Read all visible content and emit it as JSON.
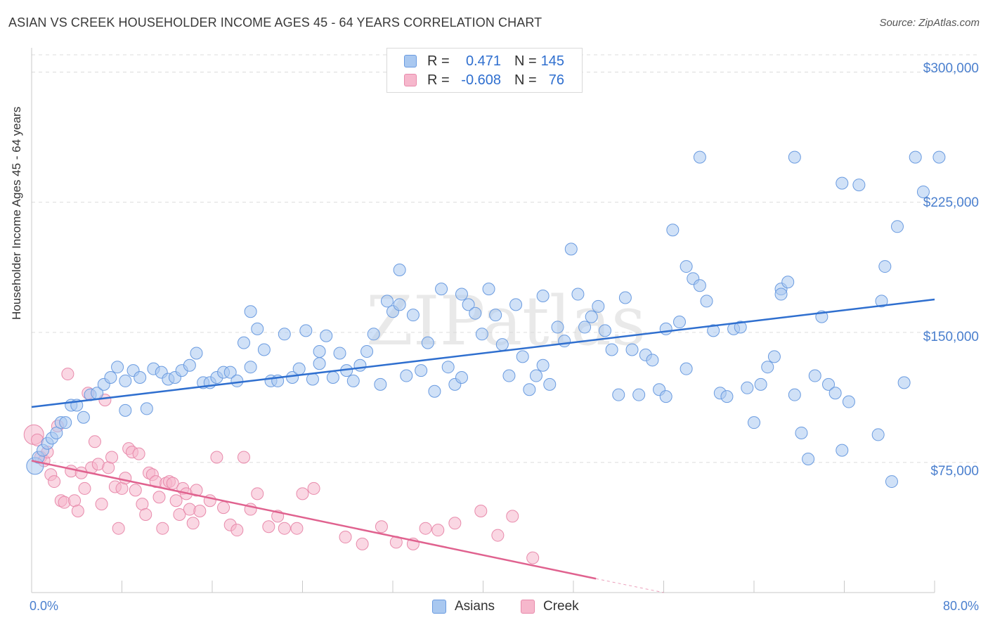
{
  "title": "ASIAN VS CREEK HOUSEHOLDER INCOME AGES 45 - 64 YEARS CORRELATION CHART",
  "source": "Source: ZipAtlas.com",
  "watermark": "ZIPatlas",
  "legend": {
    "rows": [
      {
        "r_label": "R =",
        "r_value": "0.471",
        "n_label": "N =",
        "n_value": "145"
      },
      {
        "r_label": "R =",
        "r_value": "-0.608",
        "n_label": "N =",
        "n_value": "76"
      }
    ]
  },
  "bottom_legend": {
    "asians": "Asians",
    "creek": "Creek"
  },
  "colors": {
    "asians_fill": "#a9c8f0",
    "asians_stroke": "#6a9be0",
    "asians_line": "#2f6fcf",
    "creek_fill": "#f6b7cc",
    "creek_stroke": "#e88aab",
    "creek_line": "#e0628f",
    "tick_text": "#4a7fce",
    "grid": "#dcdcdc"
  },
  "chart_data": {
    "type": "scatter",
    "title": "ASIAN VS CREEK HOUSEHOLDER INCOME AGES 45 - 64 YEARS CORRELATION CHART",
    "xlabel": "",
    "ylabel": "Householder Income Ages 45 - 64 years",
    "xlim": [
      0,
      80
    ],
    "ylim": [
      0,
      310000
    ],
    "x_tick_labels": [
      "0.0%",
      "80.0%"
    ],
    "y_ticks": [
      75000,
      150000,
      225000,
      300000
    ],
    "y_tick_labels": [
      "$75,000",
      "$150,000",
      "$225,000",
      "$300,000"
    ],
    "grid": true,
    "legend_position": "top-center",
    "series": [
      {
        "name": "Asians",
        "r": 0.471,
        "n": 145,
        "trend": {
          "x": [
            0,
            80
          ],
          "y": [
            107000,
            169000
          ]
        },
        "points": [
          [
            0.3,
            73000
          ],
          [
            0.6,
            78000
          ],
          [
            1.0,
            82000
          ],
          [
            1.4,
            86000
          ],
          [
            1.8,
            89000
          ],
          [
            2.2,
            92000
          ],
          [
            2.6,
            98000
          ],
          [
            3.0,
            98000
          ],
          [
            3.5,
            108000
          ],
          [
            4.0,
            108000
          ],
          [
            4.6,
            101000
          ],
          [
            5.2,
            114000
          ],
          [
            5.8,
            115000
          ],
          [
            6.4,
            120000
          ],
          [
            7.0,
            124000
          ],
          [
            7.6,
            130000
          ],
          [
            8.3,
            122000
          ],
          [
            9.0,
            128000
          ],
          [
            9.6,
            124000
          ],
          [
            10.2,
            106000
          ],
          [
            10.8,
            129000
          ],
          [
            11.5,
            127000
          ],
          [
            12.1,
            123000
          ],
          [
            12.7,
            124000
          ],
          [
            13.3,
            128000
          ],
          [
            14.0,
            131000
          ],
          [
            14.6,
            138000
          ],
          [
            15.2,
            121000
          ],
          [
            15.8,
            121000
          ],
          [
            16.4,
            124000
          ],
          [
            17.0,
            127000
          ],
          [
            17.6,
            127000
          ],
          [
            18.2,
            122000
          ],
          [
            18.8,
            144000
          ],
          [
            19.4,
            130000
          ],
          [
            20.0,
            152000
          ],
          [
            20.6,
            140000
          ],
          [
            21.2,
            122000
          ],
          [
            21.8,
            122000
          ],
          [
            22.4,
            149000
          ],
          [
            23.1,
            124000
          ],
          [
            23.7,
            129000
          ],
          [
            24.3,
            151000
          ],
          [
            24.9,
            123000
          ],
          [
            25.5,
            132000
          ],
          [
            26.1,
            148000
          ],
          [
            26.7,
            124000
          ],
          [
            27.3,
            138000
          ],
          [
            27.9,
            128000
          ],
          [
            28.5,
            122000
          ],
          [
            29.1,
            131000
          ],
          [
            29.7,
            139000
          ],
          [
            30.3,
            149000
          ],
          [
            30.9,
            120000
          ],
          [
            31.5,
            168000
          ],
          [
            32.0,
            162000
          ],
          [
            32.6,
            166000
          ],
          [
            33.2,
            125000
          ],
          [
            33.8,
            160000
          ],
          [
            34.5,
            128000
          ],
          [
            35.1,
            144000
          ],
          [
            35.7,
            116000
          ],
          [
            36.3,
            175000
          ],
          [
            36.9,
            130000
          ],
          [
            37.5,
            120000
          ],
          [
            38.1,
            124000
          ],
          [
            38.7,
            166000
          ],
          [
            39.3,
            161000
          ],
          [
            39.9,
            149000
          ],
          [
            40.5,
            175000
          ],
          [
            41.1,
            160000
          ],
          [
            41.7,
            143000
          ],
          [
            42.3,
            125000
          ],
          [
            42.9,
            166000
          ],
          [
            43.5,
            136000
          ],
          [
            44.1,
            117000
          ],
          [
            44.7,
            125000
          ],
          [
            45.3,
            131000
          ],
          [
            45.9,
            120000
          ],
          [
            46.6,
            153000
          ],
          [
            47.2,
            145000
          ],
          [
            47.8,
            198000
          ],
          [
            48.4,
            172000
          ],
          [
            49.0,
            153000
          ],
          [
            49.6,
            159000
          ],
          [
            50.2,
            165000
          ],
          [
            50.8,
            151000
          ],
          [
            51.4,
            140000
          ],
          [
            52.0,
            114000
          ],
          [
            52.6,
            170000
          ],
          [
            53.2,
            140000
          ],
          [
            53.8,
            114000
          ],
          [
            54.4,
            137000
          ],
          [
            55.0,
            134000
          ],
          [
            55.6,
            117000
          ],
          [
            56.2,
            113000
          ],
          [
            56.8,
            209000
          ],
          [
            57.4,
            156000
          ],
          [
            58.0,
            129000
          ],
          [
            58.6,
            181000
          ],
          [
            59.2,
            177000
          ],
          [
            59.8,
            168000
          ],
          [
            60.4,
            151000
          ],
          [
            61.0,
            115000
          ],
          [
            61.6,
            113000
          ],
          [
            62.2,
            152000
          ],
          [
            62.8,
            153000
          ],
          [
            63.4,
            118000
          ],
          [
            64.0,
            98000
          ],
          [
            64.6,
            120000
          ],
          [
            65.2,
            130000
          ],
          [
            65.8,
            136000
          ],
          [
            66.4,
            175000
          ],
          [
            67.0,
            179000
          ],
          [
            67.6,
            114000
          ],
          [
            68.2,
            92000
          ],
          [
            68.8,
            77000
          ],
          [
            69.4,
            125000
          ],
          [
            70.0,
            159000
          ],
          [
            70.6,
            120000
          ],
          [
            71.2,
            115000
          ],
          [
            71.8,
            82000
          ],
          [
            72.4,
            110000
          ],
          [
            75.0,
            91000
          ],
          [
            76.2,
            64000
          ],
          [
            75.3,
            168000
          ],
          [
            59.2,
            251000
          ],
          [
            75.6,
            188000
          ],
          [
            71.8,
            236000
          ],
          [
            73.3,
            235000
          ],
          [
            78.3,
            251000
          ],
          [
            80.4,
            251000
          ],
          [
            79.0,
            231000
          ],
          [
            76.7,
            211000
          ],
          [
            77.3,
            121000
          ],
          [
            67.6,
            251000
          ],
          [
            58.0,
            188000
          ],
          [
            66.4,
            172000
          ],
          [
            45.3,
            171000
          ],
          [
            56.2,
            152000
          ],
          [
            38.1,
            172000
          ],
          [
            32.6,
            186000
          ],
          [
            25.5,
            139000
          ],
          [
            19.4,
            162000
          ],
          [
            8.3,
            105000
          ]
        ]
      },
      {
        "name": "Creek",
        "r": -0.608,
        "n": 76,
        "trend": {
          "x": [
            0,
            50
          ],
          "y": [
            76000,
            8000
          ],
          "dashed_to": [
            56,
            0
          ]
        },
        "points": [
          [
            0.2,
            91000
          ],
          [
            0.5,
            88000
          ],
          [
            0.8,
            78000
          ],
          [
            1.1,
            76000
          ],
          [
            1.4,
            81000
          ],
          [
            1.7,
            68000
          ],
          [
            2.0,
            64000
          ],
          [
            2.3,
            96000
          ],
          [
            2.6,
            53000
          ],
          [
            2.9,
            52000
          ],
          [
            3.2,
            126000
          ],
          [
            3.5,
            70000
          ],
          [
            3.8,
            53000
          ],
          [
            4.1,
            47000
          ],
          [
            4.4,
            69000
          ],
          [
            4.7,
            60000
          ],
          [
            5.0,
            115000
          ],
          [
            5.3,
            72000
          ],
          [
            5.6,
            87000
          ],
          [
            5.9,
            74000
          ],
          [
            6.2,
            51000
          ],
          [
            6.5,
            111000
          ],
          [
            6.8,
            72000
          ],
          [
            7.1,
            78000
          ],
          [
            7.4,
            61000
          ],
          [
            7.7,
            37000
          ],
          [
            8.0,
            60000
          ],
          [
            8.3,
            66000
          ],
          [
            8.6,
            83000
          ],
          [
            8.9,
            81000
          ],
          [
            9.2,
            59000
          ],
          [
            9.5,
            80000
          ],
          [
            9.8,
            51000
          ],
          [
            10.1,
            45000
          ],
          [
            10.4,
            69000
          ],
          [
            10.7,
            68000
          ],
          [
            11.0,
            64000
          ],
          [
            11.3,
            55000
          ],
          [
            11.6,
            37000
          ],
          [
            11.9,
            63000
          ],
          [
            12.2,
            64000
          ],
          [
            12.5,
            63000
          ],
          [
            12.8,
            53000
          ],
          [
            13.1,
            45000
          ],
          [
            13.4,
            60000
          ],
          [
            13.7,
            57000
          ],
          [
            14.0,
            48000
          ],
          [
            14.3,
            40000
          ],
          [
            14.6,
            59000
          ],
          [
            14.9,
            47000
          ],
          [
            15.8,
            53000
          ],
          [
            16.4,
            78000
          ],
          [
            17.0,
            49000
          ],
          [
            17.6,
            39000
          ],
          [
            18.2,
            36000
          ],
          [
            18.8,
            78000
          ],
          [
            19.4,
            48000
          ],
          [
            20.0,
            57000
          ],
          [
            21.0,
            38000
          ],
          [
            21.8,
            44000
          ],
          [
            22.4,
            37000
          ],
          [
            23.5,
            37000
          ],
          [
            24.0,
            57000
          ],
          [
            25.0,
            60000
          ],
          [
            27.8,
            32000
          ],
          [
            29.3,
            28000
          ],
          [
            31.0,
            38000
          ],
          [
            32.3,
            29000
          ],
          [
            33.8,
            28000
          ],
          [
            34.9,
            37000
          ],
          [
            36.0,
            36000
          ],
          [
            37.5,
            40000
          ],
          [
            39.8,
            47000
          ],
          [
            41.3,
            33000
          ],
          [
            42.6,
            44000
          ],
          [
            44.4,
            20000
          ]
        ]
      }
    ]
  }
}
